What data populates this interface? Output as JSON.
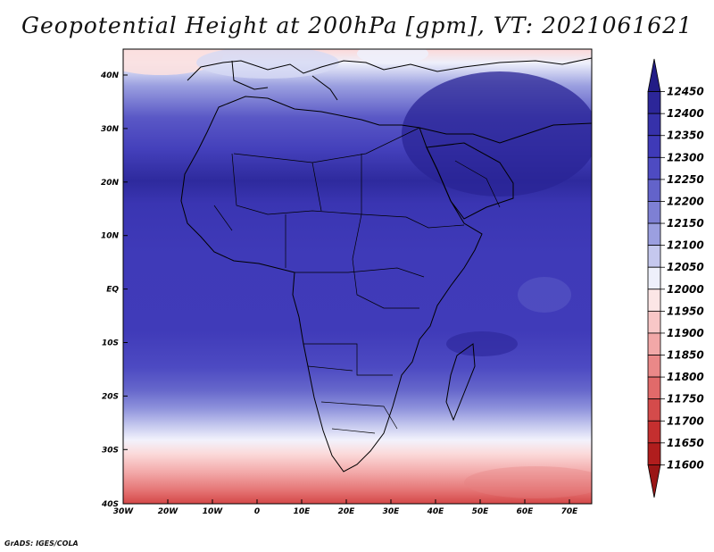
{
  "title": "Geopotential Height at 200hPa [gpm], VT: 2021061621",
  "footer": "GrADS: IGES/COLA",
  "map": {
    "lon_labels": [
      "30W",
      "20W",
      "10W",
      "0",
      "10E",
      "20E",
      "30E",
      "40E",
      "50E",
      "60E",
      "70E"
    ],
    "lat_labels": [
      "40N",
      "30N",
      "20N",
      "10N",
      "EQ",
      "10S",
      "20S",
      "30S",
      "40S"
    ]
  },
  "colorbar": {
    "levels": [
      "12450",
      "12400",
      "12350",
      "12300",
      "12250",
      "12200",
      "12150",
      "12100",
      "12050",
      "12000",
      "11950",
      "11900",
      "11850",
      "11800",
      "11750",
      "11700",
      "11650",
      "11600"
    ],
    "colors": [
      "#221c86",
      "#2c2699",
      "#3631aa",
      "#3f3ab8",
      "#4e4bc2",
      "#6363ca",
      "#7e80d4",
      "#9b9fe0",
      "#c5c8ee",
      "#eef0fb",
      "#fce6e6",
      "#f8c7c7",
      "#f2a8a8",
      "#ea8888",
      "#e16a6a",
      "#d44b4b",
      "#c42f2f",
      "#b01d1d",
      "#9a1616"
    ]
  }
}
